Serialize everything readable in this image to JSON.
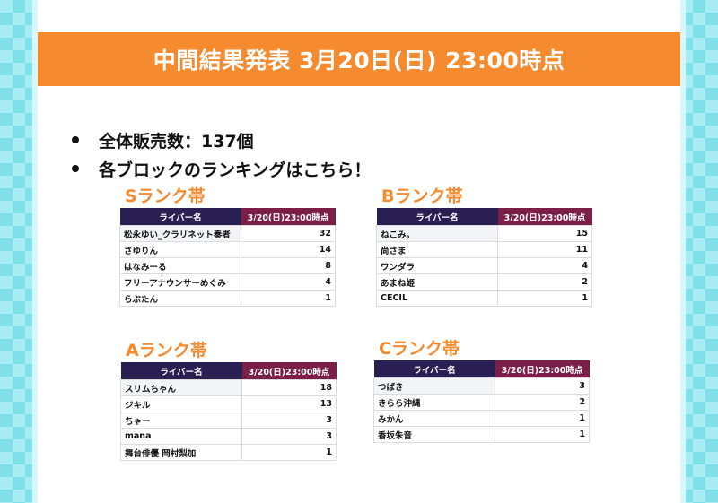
{
  "banner": {
    "title": "中間結果発表 3月20日(日) 23:00時点"
  },
  "bullets": [
    {
      "text": "全体販売数：137個"
    },
    {
      "text": "各ブロックのランキングはこちら！"
    }
  ],
  "colors": {
    "accent_orange": "#f58a2e",
    "header_navy": "#2a1f52",
    "header_maroon": "#7b1f48",
    "side_cyan": "#a8ecf3"
  },
  "blocks": {
    "s": {
      "title": "Sランク帯",
      "col_name": "ライバー名",
      "col_time": "3/20(日)23:00時点",
      "rows": [
        {
          "name": "松永ゆい_クラリネット奏者",
          "value": "32"
        },
        {
          "name": "さゆりん",
          "value": "14"
        },
        {
          "name": "はなみーる",
          "value": "8"
        },
        {
          "name": "フリーアナウンサーめぐみ",
          "value": "4"
        },
        {
          "name": "らぶたん",
          "value": "1"
        }
      ]
    },
    "b": {
      "title": "Bランク帯",
      "col_name": "ライバー名",
      "col_time": "3/20(日)23:00時点",
      "rows": [
        {
          "name": "ねこみ。",
          "value": "15"
        },
        {
          "name": "尚さま",
          "value": "11"
        },
        {
          "name": "ワンダラ",
          "value": "4"
        },
        {
          "name": "あまね姫",
          "value": "2"
        },
        {
          "name": "CECIL",
          "value": "1"
        }
      ]
    },
    "a": {
      "title": "Aランク帯",
      "col_name": "ライバー名",
      "col_time": "3/20(日)23:00時点",
      "rows": [
        {
          "name": "スリムちゃん",
          "value": "18"
        },
        {
          "name": "ジキル",
          "value": "13"
        },
        {
          "name": "ちゃー",
          "value": "3"
        },
        {
          "name": "mana",
          "value": "3"
        },
        {
          "name": "舞台俳優 岡村梨加",
          "value": "1"
        }
      ]
    },
    "c": {
      "title": "Cランク帯",
      "col_name": "ライバー名",
      "col_time": "3/20(日)23:00時点",
      "rows": [
        {
          "name": "つばき",
          "value": "3"
        },
        {
          "name": "きらら沖縄",
          "value": "2"
        },
        {
          "name": "みかん",
          "value": "1"
        },
        {
          "name": "香坂朱音",
          "value": "1"
        }
      ]
    }
  }
}
